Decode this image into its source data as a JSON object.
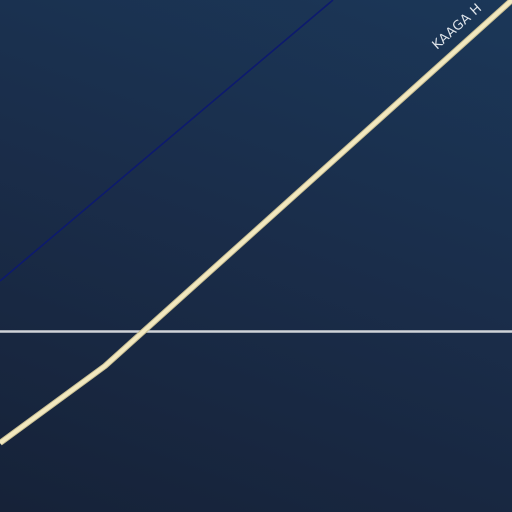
{
  "map": {
    "road_label": "KAAGA H",
    "colors": {
      "background_top": "#1b3758",
      "background_bottom": "#162238",
      "major_road": "#f2e8bf",
      "major_road_casing": "#c9bf93",
      "minor_road": "#cfd3d8",
      "waterway_line": "#0d1a6e",
      "label_text": "#dfe4ea"
    }
  }
}
